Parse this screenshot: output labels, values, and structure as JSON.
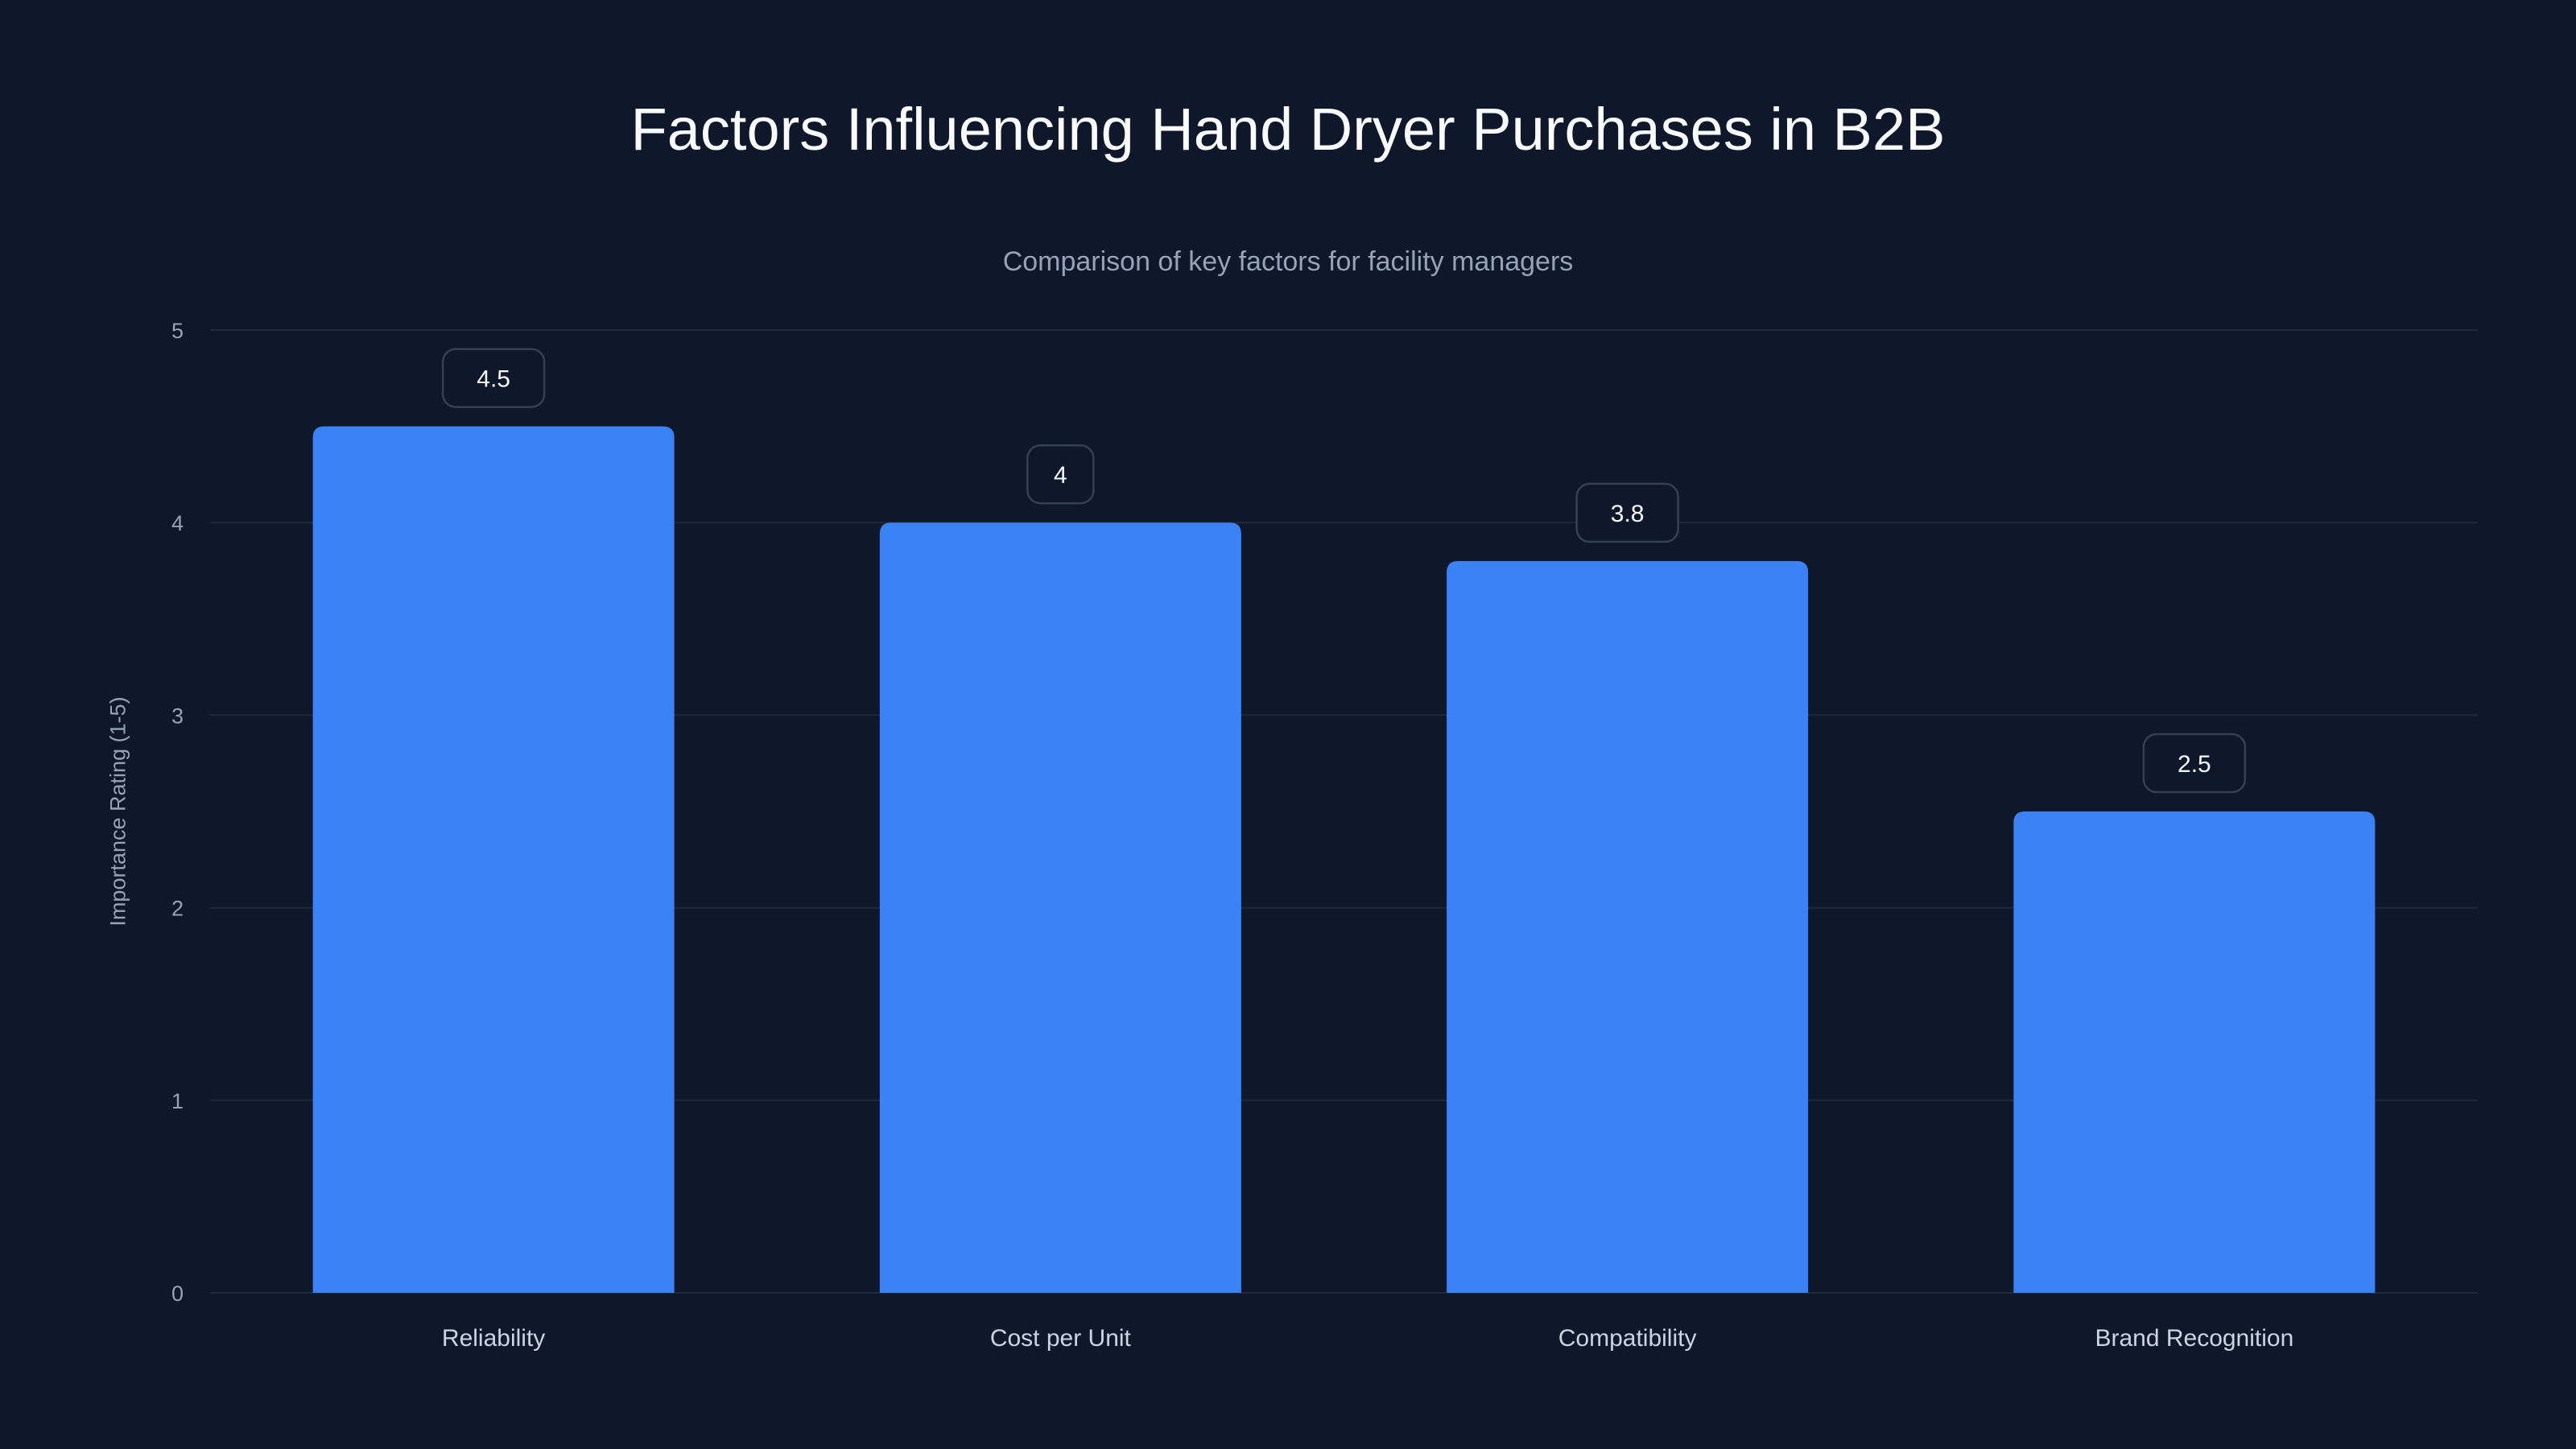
{
  "chart_data": {
    "type": "bar",
    "title": "Factors Influencing Hand Dryer Purchases in B2B",
    "subtitle": "Comparison of key factors for facility managers",
    "xlabel": "",
    "ylabel": "Importance Rating (1-5)",
    "categories": [
      "Reliability",
      "Cost per Unit",
      "Compatibility",
      "Brand Recognition"
    ],
    "values": [
      4.5,
      4,
      3.8,
      2.5
    ],
    "data_labels": [
      "4.5",
      "4",
      "3.8",
      "2.5"
    ],
    "ylim": [
      0,
      5
    ],
    "yticks": [
      "0",
      "1",
      "2",
      "3",
      "4",
      "5"
    ],
    "grid": true,
    "legend": "none"
  },
  "colors": {
    "background": "#0f172a",
    "bar": "#3b82f6",
    "grid": "#1e293b",
    "muted_text": "#94a3b8"
  }
}
